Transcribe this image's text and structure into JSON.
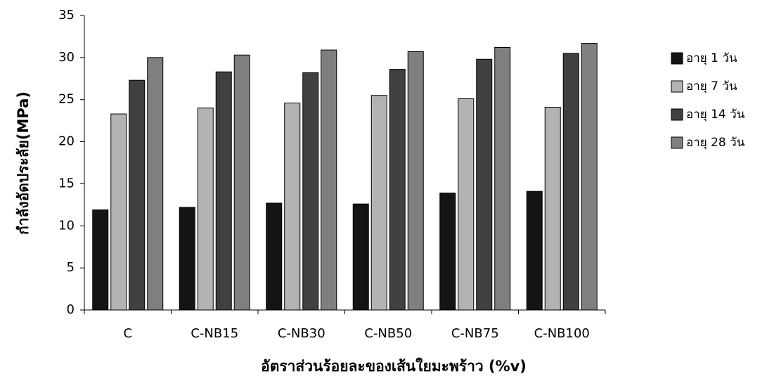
{
  "chart_data": {
    "type": "bar",
    "x_label": "อัตราส่วนร้อยละของเส้นใยมะพร้าว (%v)",
    "y_label": "กำลังอัดประลัย(MPa)",
    "categories": [
      "C",
      "C-NB15",
      "C-NB30",
      "C-NB50",
      "C-NB75",
      "C-NB100"
    ],
    "series": [
      {
        "name": "อายุ 1 วัน",
        "color": "#141414",
        "values": [
          11.9,
          12.2,
          12.7,
          12.6,
          13.9,
          14.1
        ]
      },
      {
        "name": "อายุ 7 วัน",
        "color": "#b3b3b3",
        "values": [
          23.3,
          24.0,
          24.6,
          25.5,
          25.1,
          24.1
        ]
      },
      {
        "name": "อายุ 14 วัน",
        "color": "#404040",
        "values": [
          27.3,
          28.3,
          28.2,
          28.6,
          29.8,
          30.5
        ]
      },
      {
        "name": "อายุ 28 วัน",
        "color": "#7f7f7f",
        "values": [
          30.0,
          30.3,
          30.9,
          30.7,
          31.2,
          31.7
        ]
      }
    ],
    "ylim": [
      0,
      35
    ],
    "yticks": [
      0,
      5,
      10,
      15,
      20,
      25,
      30,
      35
    ],
    "legend": "right"
  }
}
